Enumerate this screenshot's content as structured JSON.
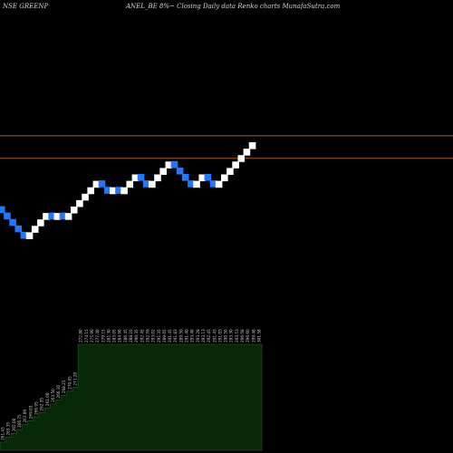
{
  "header": {
    "symbol_text": "NSE GREENP",
    "title_text": "ANEL_BE 8%~  Closing Daily data  Renko  charts MunafaSutra.com"
  },
  "colors": {
    "background": "#000000",
    "up_brick": "#ffffff",
    "down_brick": "#1f78ff",
    "reference_line": "#b5541e",
    "volume_fill": "#062806",
    "volume_stroke": "#2c5e2c",
    "label_text": "#cccccc"
  },
  "chart_data": {
    "type": "renko",
    "reference_lines": [
      303,
      296
    ],
    "bricks": [
      {
        "dir": "down",
        "close": 279
      },
      {
        "dir": "down",
        "close": 277
      },
      {
        "dir": "down",
        "close": 275
      },
      {
        "dir": "down",
        "close": 273
      },
      {
        "dir": "down",
        "close": 271
      },
      {
        "dir": "up",
        "close": 273
      },
      {
        "dir": "up",
        "close": 275
      },
      {
        "dir": "up",
        "close": 277
      },
      {
        "dir": "up",
        "close": 279
      },
      {
        "dir": "down",
        "close": 277
      },
      {
        "dir": "up",
        "close": 279
      },
      {
        "dir": "down",
        "close": 277
      },
      {
        "dir": "up",
        "close": 279
      },
      {
        "dir": "up",
        "close": 281
      },
      {
        "dir": "up",
        "close": 283
      },
      {
        "dir": "up",
        "close": 285
      },
      {
        "dir": "up",
        "close": 287
      },
      {
        "dir": "up",
        "close": 289
      },
      {
        "dir": "down",
        "close": 287
      },
      {
        "dir": "down",
        "close": 285
      },
      {
        "dir": "up",
        "close": 287
      },
      {
        "dir": "down",
        "close": 285
      },
      {
        "dir": "up",
        "close": 287
      },
      {
        "dir": "up",
        "close": 289
      },
      {
        "dir": "up",
        "close": 291
      },
      {
        "dir": "down",
        "close": 289
      },
      {
        "dir": "down",
        "close": 287
      },
      {
        "dir": "up",
        "close": 289
      },
      {
        "dir": "up",
        "close": 291
      },
      {
        "dir": "up",
        "close": 293
      },
      {
        "dir": "up",
        "close": 295
      },
      {
        "dir": "down",
        "close": 293
      },
      {
        "dir": "down",
        "close": 291
      },
      {
        "dir": "down",
        "close": 289
      },
      {
        "dir": "down",
        "close": 287
      },
      {
        "dir": "up",
        "close": 289
      },
      {
        "dir": "up",
        "close": 291
      },
      {
        "dir": "down",
        "close": 289
      },
      {
        "dir": "down",
        "close": 287
      },
      {
        "dir": "up",
        "close": 289
      },
      {
        "dir": "up",
        "close": 291
      },
      {
        "dir": "up",
        "close": 293
      },
      {
        "dir": "up",
        "close": 295
      },
      {
        "dir": "up",
        "close": 297
      },
      {
        "dir": "up",
        "close": 299
      },
      {
        "dir": "up",
        "close": 301
      }
    ],
    "volume_labels": [
      "261.43",
      "263.35",
      "265.00",
      "266.75",
      "267.09",
      "269.03",
      "266.95",
      "262.35",
      "261.00",
      "263.50",
      "266.10",
      "268.25",
      "270.05",
      "271.20",
      "272.80",
      "274.15",
      "275.90",
      "277.40",
      "279.15",
      "281.30",
      "283.05",
      "284.90",
      "286.45",
      "288.10",
      "290.35",
      "292.45",
      "292.78",
      "293.02",
      "291.35",
      "289.65",
      "291.45",
      "291.83",
      "289.50",
      "291.40",
      "293.40",
      "293.28",
      "293.13",
      "292.45",
      "291.43",
      "291.03",
      "290.50",
      "293.30",
      "293.53",
      "296.58",
      "296.60",
      "299.48",
      "301.58"
    ],
    "volume_levels": [
      0.0,
      0.05,
      0.09,
      0.13,
      0.18,
      0.22,
      0.26,
      0.3,
      0.35,
      0.39,
      0.43,
      0.48,
      0.52,
      0.56,
      1.0,
      1.0,
      1.0,
      1.0,
      1.0,
      1.0,
      1.0,
      1.0,
      1.0,
      1.0,
      1.0,
      1.0,
      1.0,
      1.0,
      1.0,
      1.0,
      1.0,
      1.0,
      1.0,
      1.0,
      1.0,
      1.0,
      1.0,
      1.0,
      1.0,
      1.0,
      1.0,
      1.0,
      1.0,
      1.0,
      1.0,
      1.0,
      1.0
    ]
  }
}
